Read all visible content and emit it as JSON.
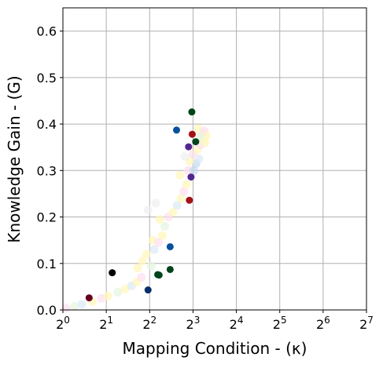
{
  "chart_data": {
    "type": "scatter",
    "xlabel": "Mapping Condition - (κ)",
    "ylabel": "Knowledge Gain - (G)",
    "x_scale": "log2",
    "xlim": [
      1,
      128
    ],
    "ylim": [
      0,
      0.65
    ],
    "x_ticks": [
      {
        "value": 1,
        "base": "2",
        "exp": "0"
      },
      {
        "value": 2,
        "base": "2",
        "exp": "1"
      },
      {
        "value": 4,
        "base": "2",
        "exp": "2"
      },
      {
        "value": 8,
        "base": "2",
        "exp": "3"
      },
      {
        "value": 16,
        "base": "2",
        "exp": "4"
      },
      {
        "value": 32,
        "base": "2",
        "exp": "5"
      },
      {
        "value": 64,
        "base": "2",
        "exp": "6"
      },
      {
        "value": 128,
        "base": "2",
        "exp": "7"
      }
    ],
    "y_ticks": [
      {
        "value": 0.0,
        "label": "0.0"
      },
      {
        "value": 0.1,
        "label": "0.1"
      },
      {
        "value": 0.2,
        "label": "0.2"
      },
      {
        "value": 0.3,
        "label": "0.3"
      },
      {
        "value": 0.4,
        "label": "0.4"
      },
      {
        "value": 0.5,
        "label": "0.5"
      },
      {
        "value": 0.6,
        "label": "0.6"
      }
    ],
    "grid": true,
    "legend": "none",
    "points": [
      {
        "x": 1.52,
        "y": 0.026,
        "color": "#67001f"
      },
      {
        "x": 2.2,
        "y": 0.08,
        "color": "#000000"
      },
      {
        "x": 3.9,
        "y": 0.043,
        "color": "#08306b"
      },
      {
        "x": 4.55,
        "y": 0.076,
        "color": "#00441b"
      },
      {
        "x": 4.65,
        "y": 0.075,
        "color": "#00441b"
      },
      {
        "x": 5.55,
        "y": 0.087,
        "color": "#00441b"
      },
      {
        "x": 5.55,
        "y": 0.136,
        "color": "#08519c"
      },
      {
        "x": 7.55,
        "y": 0.236,
        "color": "#a50f15"
      },
      {
        "x": 7.75,
        "y": 0.286,
        "color": "#54278f"
      },
      {
        "x": 7.45,
        "y": 0.351,
        "color": "#54278f"
      },
      {
        "x": 6.15,
        "y": 0.387,
        "color": "#08519c"
      },
      {
        "x": 7.9,
        "y": 0.378,
        "color": "#a50f15"
      },
      {
        "x": 8.35,
        "y": 0.362,
        "color": "#00441b"
      },
      {
        "x": 7.85,
        "y": 0.426,
        "color": "#00441b"
      }
    ],
    "background_points": [
      {
        "x": 1.05,
        "y": 0.004,
        "color": "#fde0ef"
      },
      {
        "x": 1.2,
        "y": 0.008,
        "color": "#e5f5e0"
      },
      {
        "x": 1.35,
        "y": 0.012,
        "color": "#deebf7"
      },
      {
        "x": 1.6,
        "y": 0.018,
        "color": "#fff7bc"
      },
      {
        "x": 1.85,
        "y": 0.025,
        "color": "#fde0ef"
      },
      {
        "x": 2.05,
        "y": 0.03,
        "color": "#fff7bc"
      },
      {
        "x": 2.4,
        "y": 0.038,
        "color": "#e5f5e0"
      },
      {
        "x": 2.7,
        "y": 0.045,
        "color": "#fff7bc"
      },
      {
        "x": 3.0,
        "y": 0.052,
        "color": "#deebf7"
      },
      {
        "x": 3.25,
        "y": 0.06,
        "color": "#fff7bc"
      },
      {
        "x": 3.5,
        "y": 0.07,
        "color": "#fde0ef"
      },
      {
        "x": 3.3,
        "y": 0.09,
        "color": "#fff7bc"
      },
      {
        "x": 3.55,
        "y": 0.105,
        "color": "#fff7bc"
      },
      {
        "x": 4.1,
        "y": 0.095,
        "color": "#e5f5e0"
      },
      {
        "x": 3.8,
        "y": 0.12,
        "color": "#fff7bc"
      },
      {
        "x": 4.3,
        "y": 0.13,
        "color": "#deebf7"
      },
      {
        "x": 4.2,
        "y": 0.15,
        "color": "#fff7bc"
      },
      {
        "x": 4.6,
        "y": 0.145,
        "color": "#fde0ef"
      },
      {
        "x": 4.9,
        "y": 0.16,
        "color": "#fff7bc"
      },
      {
        "x": 5.1,
        "y": 0.18,
        "color": "#e5f5e0"
      },
      {
        "x": 4.7,
        "y": 0.195,
        "color": "#fff7bc"
      },
      {
        "x": 5.4,
        "y": 0.2,
        "color": "#fde0ef"
      },
      {
        "x": 5.8,
        "y": 0.21,
        "color": "#fff7bc"
      },
      {
        "x": 6.2,
        "y": 0.225,
        "color": "#deebf7"
      },
      {
        "x": 4.4,
        "y": 0.23,
        "color": "#f0f0f0"
      },
      {
        "x": 3.9,
        "y": 0.215,
        "color": "#f0f0f0"
      },
      {
        "x": 6.6,
        "y": 0.24,
        "color": "#fff7bc"
      },
      {
        "x": 6.9,
        "y": 0.255,
        "color": "#fde0ef"
      },
      {
        "x": 7.2,
        "y": 0.27,
        "color": "#fff7bc"
      },
      {
        "x": 7.4,
        "y": 0.3,
        "color": "#fde0ef"
      },
      {
        "x": 8.1,
        "y": 0.3,
        "color": "#c6dbef"
      },
      {
        "x": 8.4,
        "y": 0.315,
        "color": "#c6dbef"
      },
      {
        "x": 8.8,
        "y": 0.325,
        "color": "#deebf7"
      },
      {
        "x": 7.6,
        "y": 0.32,
        "color": "#fff7bc"
      },
      {
        "x": 8.0,
        "y": 0.335,
        "color": "#fde0ef"
      },
      {
        "x": 8.6,
        "y": 0.345,
        "color": "#fff7bc"
      },
      {
        "x": 9.0,
        "y": 0.355,
        "color": "#fde0ef"
      },
      {
        "x": 9.4,
        "y": 0.368,
        "color": "#fff7bc"
      },
      {
        "x": 9.2,
        "y": 0.38,
        "color": "#fde0ef"
      },
      {
        "x": 8.7,
        "y": 0.39,
        "color": "#fff7bc"
      },
      {
        "x": 9.6,
        "y": 0.385,
        "color": "#fde0ef"
      },
      {
        "x": 9.9,
        "y": 0.375,
        "color": "#fff7bc"
      },
      {
        "x": 9.7,
        "y": 0.36,
        "color": "#fff7bc"
      },
      {
        "x": 8.9,
        "y": 0.372,
        "color": "#e5f5e0"
      },
      {
        "x": 7.0,
        "y": 0.33,
        "color": "#f0f0f0"
      },
      {
        "x": 6.5,
        "y": 0.29,
        "color": "#fff7bc"
      }
    ]
  }
}
